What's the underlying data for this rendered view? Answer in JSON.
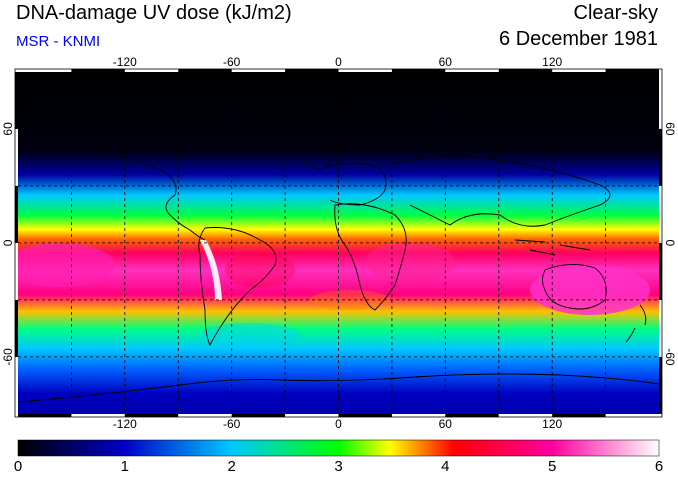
{
  "header": {
    "title": "DNA-damage UV dose (kJ/m2)",
    "source": "MSR - KNMI",
    "condition": "Clear-sky",
    "date": "6 December 1981"
  },
  "axes": {
    "lon_ticks": [
      "-120",
      "-60",
      "0",
      "60",
      "120"
    ],
    "lat_ticks_left": [
      "60",
      "0",
      "-60"
    ],
    "lat_ticks_right": [
      "60",
      "0",
      "-60"
    ]
  },
  "colorbar": {
    "min": 0,
    "max": 6,
    "labels": [
      "0",
      "1",
      "2",
      "3",
      "4",
      "5",
      "6"
    ],
    "stops": [
      "#000000",
      "#0000c8",
      "#00c8ff",
      "#00ff00",
      "#ffff00",
      "#ff0000",
      "#ff00a0",
      "#ffffff"
    ]
  },
  "colors": {
    "subtitle": "#0000ff",
    "coastline": "#000000",
    "grid": "#000000"
  }
}
